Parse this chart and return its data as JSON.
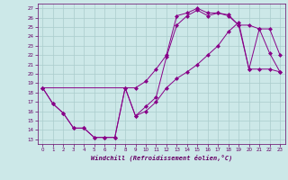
{
  "title": "",
  "xlabel": "Windchill (Refroidissement éolien,°C)",
  "bg_color": "#cce8e8",
  "line_color": "#880088",
  "grid_color": "#aacccc",
  "xlim": [
    -0.5,
    23.5
  ],
  "ylim": [
    12.5,
    27.5
  ],
  "xticks": [
    0,
    1,
    2,
    3,
    4,
    5,
    6,
    7,
    8,
    9,
    10,
    11,
    12,
    13,
    14,
    15,
    16,
    17,
    18,
    19,
    20,
    21,
    22,
    23
  ],
  "yticks": [
    13,
    14,
    15,
    16,
    17,
    18,
    19,
    20,
    21,
    22,
    23,
    24,
    25,
    26,
    27
  ],
  "upper_x": [
    0,
    9,
    10,
    11,
    12,
    13,
    14,
    15,
    16,
    17,
    18,
    19,
    20,
    21,
    22,
    23
  ],
  "upper_y": [
    18.5,
    18.5,
    19.2,
    20.5,
    22.0,
    26.2,
    26.5,
    27.0,
    26.5,
    26.5,
    26.3,
    25.2,
    25.2,
    24.8,
    24.8,
    22.0
  ],
  "lower_x": [
    0,
    1,
    2,
    3,
    4,
    5,
    6,
    7,
    8,
    9,
    10,
    11,
    12,
    13,
    14,
    15,
    16,
    17,
    18,
    19,
    20,
    21,
    22,
    23
  ],
  "lower_y": [
    18.5,
    16.8,
    15.8,
    14.2,
    14.2,
    13.2,
    13.2,
    13.2,
    18.5,
    15.5,
    16.0,
    17.0,
    18.5,
    19.5,
    20.2,
    21.0,
    22.0,
    23.0,
    24.5,
    25.5,
    20.5,
    20.5,
    20.5,
    20.2
  ],
  "mid_x": [
    0,
    1,
    2,
    3,
    4,
    5,
    6,
    7,
    8,
    9,
    10,
    11,
    12,
    13,
    14,
    15,
    16,
    17,
    18,
    19,
    20,
    21,
    22,
    23
  ],
  "mid_y": [
    18.5,
    16.8,
    15.8,
    14.2,
    14.2,
    13.2,
    13.2,
    13.2,
    18.5,
    15.5,
    16.5,
    17.5,
    21.8,
    25.2,
    26.2,
    26.8,
    26.2,
    26.5,
    26.2,
    25.2,
    20.5,
    24.8,
    22.2,
    20.2
  ]
}
